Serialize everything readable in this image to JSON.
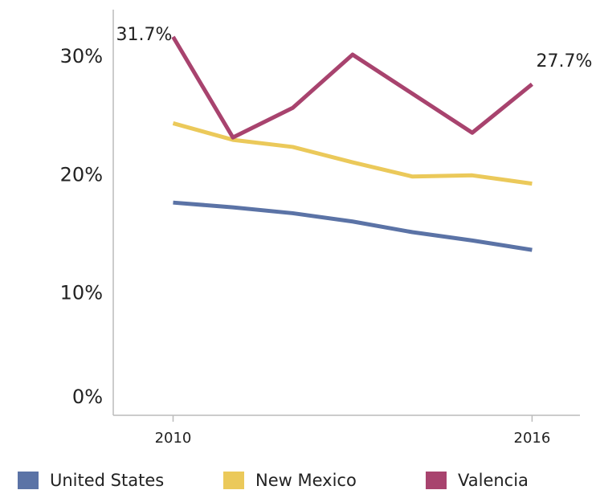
{
  "chart_data": {
    "type": "line",
    "x": [
      2010,
      2011,
      2012,
      2013,
      2014,
      2015,
      2016
    ],
    "xlim": [
      2009,
      2016.8
    ],
    "xticks": [
      2010,
      2016
    ],
    "ylim": [
      0,
      34
    ],
    "yticks": [
      {
        "value": 0,
        "label": "0%"
      },
      {
        "value": 10,
        "label": "10%"
      },
      {
        "value": 20,
        "label": "20%"
      },
      {
        "value": 30,
        "label": "30%"
      }
    ],
    "grid": false,
    "legend": "bottom",
    "series": [
      {
        "name": "United States",
        "color": "#5b73a6",
        "values": [
          17.7,
          17.3,
          16.8,
          16.1,
          15.2,
          14.5,
          13.7
        ]
      },
      {
        "name": "New Mexico",
        "color": "#ebc95a",
        "values": [
          24.4,
          23.0,
          22.4,
          21.1,
          19.9,
          20.0,
          19.3
        ]
      },
      {
        "name": "Valencia",
        "color": "#a8436e",
        "values": [
          31.7,
          23.2,
          25.7,
          30.2,
          26.9,
          23.6,
          27.7
        ],
        "value_labels": [
          "31.7%",
          null,
          null,
          null,
          null,
          null,
          "27.7%"
        ]
      }
    ]
  }
}
